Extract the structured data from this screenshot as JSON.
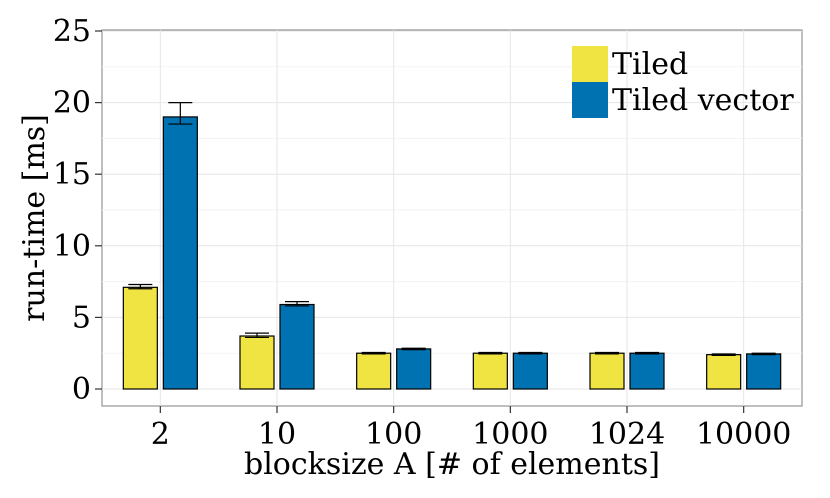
{
  "chart_data": {
    "type": "bar",
    "xlabel": "blocksize A [# of elements]",
    "ylabel": "run-time [ms]",
    "categories": [
      "2",
      "10",
      "100",
      "1000",
      "1024",
      "10000"
    ],
    "ylim": [
      0,
      25
    ],
    "yticks": [
      "0",
      "5",
      "10",
      "15",
      "20",
      "25"
    ],
    "grid": true,
    "legend_position": "top-right",
    "series": [
      {
        "name": "Tiled",
        "color": "#f0e442",
        "values": [
          7.1,
          3.7,
          2.5,
          2.5,
          2.5,
          2.4
        ],
        "error_low": [
          7.0,
          3.6,
          2.45,
          2.45,
          2.45,
          2.35
        ],
        "error_high": [
          7.3,
          3.9,
          2.55,
          2.55,
          2.55,
          2.45
        ]
      },
      {
        "name": "Tiled vector",
        "color": "#0072b2",
        "values": [
          19.0,
          5.9,
          2.8,
          2.5,
          2.5,
          2.45
        ],
        "error_low": [
          18.5,
          5.8,
          2.75,
          2.45,
          2.45,
          2.4
        ],
        "error_high": [
          20.0,
          6.1,
          2.85,
          2.55,
          2.55,
          2.5
        ]
      }
    ]
  }
}
